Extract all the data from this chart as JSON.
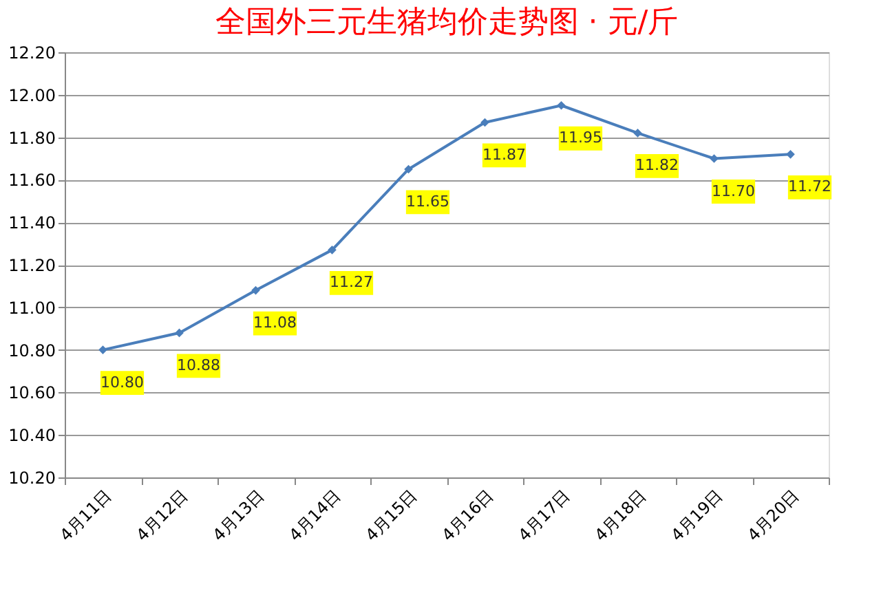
{
  "chart_data": {
    "type": "line",
    "title": "全国外三元生猪均价走势图 · 元/斤",
    "categories": [
      "4月11日",
      "4月12日",
      "4月13日",
      "4月14日",
      "4月15日",
      "4月16日",
      "4月17日",
      "4月18日",
      "4月19日",
      "4月20日"
    ],
    "series": [
      {
        "color": "#4a7ebb",
        "values": [
          10.8,
          10.88,
          11.08,
          11.27,
          11.65,
          11.87,
          11.95,
          11.82,
          11.7,
          11.72
        ]
      }
    ],
    "ylim": [
      10.2,
      12.2
    ],
    "yticks": [
      {
        "value": 10.2,
        "label": "10.20"
      },
      {
        "value": 10.4,
        "label": "10.40"
      },
      {
        "value": 10.6,
        "label": "10.60"
      },
      {
        "value": 10.8,
        "label": "10.80"
      },
      {
        "value": 11.0,
        "label": "11.00"
      },
      {
        "value": 11.2,
        "label": "11.20"
      },
      {
        "value": 11.4,
        "label": "11.40"
      },
      {
        "value": 11.6,
        "label": "11.60"
      },
      {
        "value": 11.8,
        "label": "11.80"
      },
      {
        "value": 12.0,
        "label": "12.00"
      },
      {
        "value": 12.2,
        "label": "12.20"
      }
    ],
    "value_labels": [
      "10.80",
      "10.88",
      "11.08",
      "11.27",
      "11.65",
      "11.87",
      "11.95",
      "11.82",
      "11.70",
      "11.72"
    ],
    "grid": "y",
    "marker": "diamond",
    "line_style": "solid"
  }
}
